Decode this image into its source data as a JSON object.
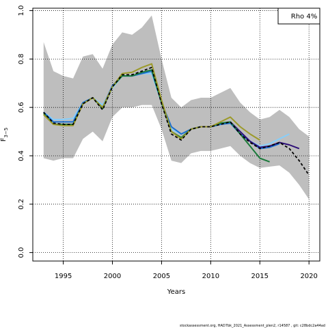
{
  "chart_data": {
    "type": "line",
    "xlabel": "Years",
    "ylabel_main": "F",
    "ylabel_sub": "3−5",
    "xlim": [
      1991.9,
      2021.1
    ],
    "ylim": [
      -0.035,
      1.01
    ],
    "x_ticks": [
      1995,
      2000,
      2005,
      2010,
      2015,
      2020
    ],
    "y_ticks": [
      0.0,
      0.2,
      0.4,
      0.6,
      0.8,
      1.0
    ],
    "grid": true,
    "legend_position": "top-right",
    "legend_text": "Rho 4%",
    "footer": "stockassessment.org, HAD7bk_2021_Assessment_plen2, r14587 , git: c28bdc2a44ad",
    "band": {
      "x": [
        1993,
        1994,
        1995,
        1996,
        1997,
        1998,
        1999,
        2000,
        2001,
        2002,
        2003,
        2004,
        2005,
        2006,
        2007,
        2008,
        2009,
        2010,
        2011,
        2012,
        2013,
        2014,
        2015,
        2016,
        2017,
        2018,
        2019,
        2020
      ],
      "upper": [
        0.87,
        0.75,
        0.73,
        0.72,
        0.81,
        0.82,
        0.76,
        0.86,
        0.91,
        0.9,
        0.93,
        0.98,
        0.8,
        0.64,
        0.6,
        0.63,
        0.64,
        0.64,
        0.66,
        0.68,
        0.62,
        0.58,
        0.55,
        0.56,
        0.59,
        0.56,
        0.51,
        0.48
      ],
      "lower": [
        0.39,
        0.38,
        0.39,
        0.39,
        0.47,
        0.5,
        0.46,
        0.56,
        0.6,
        0.6,
        0.61,
        0.61,
        0.51,
        0.38,
        0.37,
        0.41,
        0.42,
        0.42,
        0.43,
        0.44,
        0.4,
        0.37,
        0.35,
        0.355,
        0.36,
        0.33,
        0.28,
        0.22
      ]
    },
    "series": [
      {
        "color": "#87cefa",
        "dash": false,
        "x": [
          1993,
          1994,
          1995,
          1996,
          1997,
          1998,
          1999,
          2000,
          2001,
          2002,
          2003,
          2004,
          2005,
          2006,
          2007,
          2008,
          2009,
          2010,
          2011,
          2012,
          2013,
          2014,
          2015,
          2016,
          2017,
          2018
        ],
        "values": [
          0.58,
          0.55,
          0.55,
          0.555,
          0.62,
          0.64,
          0.61,
          0.68,
          0.73,
          0.73,
          0.74,
          0.74,
          0.62,
          0.51,
          0.49,
          0.51,
          0.52,
          0.52,
          0.53,
          0.54,
          0.5,
          0.46,
          0.44,
          0.45,
          0.47,
          0.49
        ]
      },
      {
        "color": "#1a6ed0",
        "dash": false,
        "x": [
          1993,
          1994,
          1995,
          1996,
          1997,
          1998,
          1999,
          2000,
          2001,
          2002,
          2003,
          2004,
          2005,
          2006,
          2007,
          2008,
          2009,
          2010,
          2011,
          2012,
          2013,
          2014,
          2015,
          2016,
          2017
        ],
        "values": [
          0.58,
          0.54,
          0.54,
          0.54,
          0.62,
          0.64,
          0.6,
          0.69,
          0.73,
          0.73,
          0.74,
          0.75,
          0.62,
          0.52,
          0.49,
          0.51,
          0.52,
          0.52,
          0.53,
          0.535,
          0.49,
          0.46,
          0.43,
          0.435,
          0.45
        ]
      },
      {
        "color": "#2e0f78",
        "dash": false,
        "x": [
          2012,
          2013,
          2014,
          2015,
          2016,
          2017,
          2018,
          2019
        ],
        "values": [
          0.54,
          0.5,
          0.46,
          0.435,
          0.44,
          0.455,
          0.445,
          0.43
        ]
      },
      {
        "color": "#1a7a3a",
        "dash": false,
        "x": [
          1993,
          1994,
          1995,
          1996,
          1997,
          1998,
          1999,
          2000,
          2001,
          2002,
          2003,
          2004,
          2005,
          2006,
          2007,
          2008,
          2009,
          2010,
          2011,
          2012,
          2013,
          2014,
          2015,
          2016
        ],
        "values": [
          0.575,
          0.53,
          0.53,
          0.53,
          0.615,
          0.64,
          0.595,
          0.685,
          0.73,
          0.73,
          0.745,
          0.755,
          0.62,
          0.5,
          0.475,
          0.51,
          0.52,
          0.52,
          0.535,
          0.54,
          0.49,
          0.44,
          0.39,
          0.375
        ]
      },
      {
        "color": "#9c9a2a",
        "dash": false,
        "x": [
          1993,
          1994,
          1995,
          1996,
          1997,
          1998,
          1999,
          2000,
          2001,
          2002,
          2003,
          2004,
          2005,
          2006,
          2007,
          2008,
          2009,
          2010,
          2011,
          2012,
          2013,
          2014,
          2015
        ],
        "values": [
          0.57,
          0.53,
          0.525,
          0.525,
          0.615,
          0.64,
          0.6,
          0.685,
          0.74,
          0.745,
          0.765,
          0.78,
          0.63,
          0.5,
          0.47,
          0.51,
          0.52,
          0.52,
          0.54,
          0.56,
          0.52,
          0.49,
          0.465
        ]
      },
      {
        "color": "#000000",
        "dash": true,
        "x": [
          1993,
          1994,
          1995,
          1996,
          1997,
          1998,
          1999,
          2000,
          2001,
          2002,
          2003,
          2004,
          2005,
          2006,
          2007,
          2008,
          2009,
          2010,
          2011,
          2012,
          2013,
          2014,
          2015,
          2016,
          2017,
          2018,
          2019,
          2020
        ],
        "values": [
          0.58,
          0.535,
          0.53,
          0.53,
          0.615,
          0.64,
          0.59,
          0.685,
          0.735,
          0.735,
          0.75,
          0.765,
          0.615,
          0.49,
          0.465,
          0.51,
          0.52,
          0.52,
          0.53,
          0.54,
          0.49,
          0.455,
          0.43,
          0.44,
          0.455,
          0.43,
          0.38,
          0.32
        ]
      }
    ]
  }
}
